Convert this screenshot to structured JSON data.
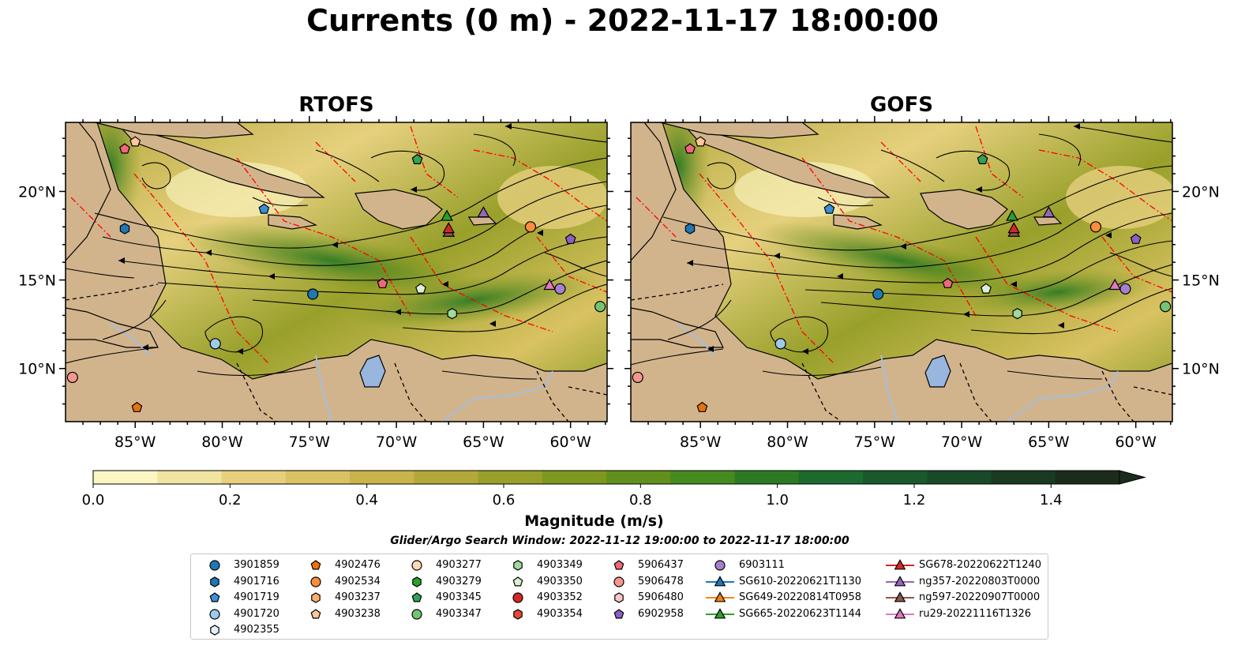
{
  "title": "Currents (0 m) - 2022-11-17 18:00:00",
  "panels": [
    {
      "title": "RTOFS"
    },
    {
      "title": "GOFS"
    }
  ],
  "axes": {
    "lat_labels": [
      "20°N",
      "15°N",
      "10°N"
    ],
    "lon_labels": [
      "85°W",
      "80°W",
      "75°W",
      "70°W",
      "65°W",
      "60°W"
    ]
  },
  "colorbar": {
    "label": "Magnitude (m/s)",
    "range": [
      0.0,
      1.5
    ],
    "extend": "max",
    "ticks": [
      "0.0",
      "0.2",
      "0.4",
      "0.6",
      "0.8",
      "1.0",
      "1.2",
      "1.4"
    ],
    "colors": [
      "#fbf6c4",
      "#f1e3a0",
      "#e6d07e",
      "#d9c262",
      "#c9b44a",
      "#b3a83a",
      "#98a02a",
      "#7e981f",
      "#62901c",
      "#478b20",
      "#2e7a24",
      "#1d6a2e",
      "#195a2c",
      "#184a27",
      "#1a3a21",
      "#1b2d1a"
    ]
  },
  "search_window": "Glider/Argo Search Window: 2022-11-12 19:00:00 to 2022-11-17 18:00:00",
  "map_colors": {
    "land": "#d2b48c",
    "lakes": "#98b6de",
    "rivers": "#a5bedc",
    "eez": "#ff0000"
  },
  "legend": [
    {
      "label": "3901859",
      "marker": "circle",
      "color": "#1f77b4"
    },
    {
      "label": "4901716",
      "marker": "hexagon",
      "color": "#1f77b4"
    },
    {
      "label": "4901719",
      "marker": "pentagon",
      "color": "#3b8fd8"
    },
    {
      "label": "4901720",
      "marker": "circle",
      "color": "#9ecae9"
    },
    {
      "label": "4902355",
      "marker": "hexagon",
      "color": "#dff0fb"
    },
    {
      "label": "4902476",
      "marker": "pentagon",
      "color": "#e8720d"
    },
    {
      "label": "4902534",
      "marker": "circle",
      "color": "#fd8d3c"
    },
    {
      "label": "4903237",
      "marker": "hexagon",
      "color": "#fdae6b"
    },
    {
      "label": "4903238",
      "marker": "pentagon",
      "color": "#fdc898"
    },
    {
      "label": "4903277",
      "marker": "circle",
      "color": "#fdd9b5"
    },
    {
      "label": "4903279",
      "marker": "hexagon",
      "color": "#2ca02c"
    },
    {
      "label": "4903345",
      "marker": "pentagon",
      "color": "#31a354"
    },
    {
      "label": "4903347",
      "marker": "circle",
      "color": "#74c476"
    },
    {
      "label": "4903349",
      "marker": "hexagon",
      "color": "#a1d99b"
    },
    {
      "label": "4903350",
      "marker": "pentagon",
      "color": "#d9f0d3"
    },
    {
      "label": "4903352",
      "marker": "circle",
      "color": "#d62728"
    },
    {
      "label": "4903354",
      "marker": "hexagon",
      "color": "#e34a33"
    },
    {
      "label": "5906437",
      "marker": "pentagon",
      "color": "#f0677a"
    },
    {
      "label": "5906478",
      "marker": "circle",
      "color": "#f4978e"
    },
    {
      "label": "5906480",
      "marker": "hexagon",
      "color": "#fbc4c4"
    },
    {
      "label": "6902958",
      "marker": "pentagon",
      "color": "#8c5fc4"
    },
    {
      "label": "6903111",
      "marker": "circle",
      "color": "#a67fd0"
    },
    {
      "label": "SG610-20220621T1130",
      "marker": "triangle-line",
      "color": "#1f77b4"
    },
    {
      "label": "SG649-20220814T0958",
      "marker": "triangle-line",
      "color": "#ff7f0e"
    },
    {
      "label": "SG665-20220623T1144",
      "marker": "triangle-line",
      "color": "#2ca02c"
    },
    {
      "label": "SG678-20220622T1240",
      "marker": "triangle-line",
      "color": "#d62728"
    },
    {
      "label": "ng357-20220803T0000",
      "marker": "triangle-line",
      "color": "#9467bd"
    },
    {
      "label": "ng597-20220907T0000",
      "marker": "triangle-line",
      "color": "#8c564b"
    },
    {
      "label": "ru29-20221116T1326",
      "marker": "triangle-line",
      "color": "#e377c2"
    }
  ],
  "markers_on_map": [
    {
      "id": "5906437",
      "lon": -85.6,
      "lat": 22.4
    },
    {
      "id": "4903238",
      "lon": -85.0,
      "lat": 22.8
    },
    {
      "id": "4901716",
      "lon": -85.6,
      "lat": 17.9
    },
    {
      "id": "4901719",
      "lon": -77.6,
      "lat": 19.0
    },
    {
      "id": "4903345",
      "lon": -68.8,
      "lat": 21.8
    },
    {
      "id": "SG665-20220623T1144",
      "lon": -67.1,
      "lat": 18.6
    },
    {
      "id": "ng597-20220907T0000",
      "lon": -67.0,
      "lat": 17.7
    },
    {
      "id": "SG678-20220622T1240",
      "lon": -67.0,
      "lat": 17.9
    },
    {
      "id": "ng357-20220803T0000",
      "lon": -65.0,
      "lat": 18.8
    },
    {
      "id": "4902534",
      "lon": -62.3,
      "lat": 18.0
    },
    {
      "id": "6902958",
      "lon": -60.0,
      "lat": 17.3
    },
    {
      "id": "3901859",
      "lon": -74.8,
      "lat": 14.2
    },
    {
      "id": "5906437",
      "lon": -70.8,
      "lat": 14.8
    },
    {
      "id": "4903350",
      "lon": -68.6,
      "lat": 14.5
    },
    {
      "id": "ru29-20221116T1326",
      "lon": -61.2,
      "lat": 14.7
    },
    {
      "id": "6903111",
      "lon": -60.6,
      "lat": 14.5
    },
    {
      "id": "4903347",
      "lon": -58.3,
      "lat": 13.5
    },
    {
      "id": "4903349",
      "lon": -66.8,
      "lat": 13.1
    },
    {
      "id": "4901720",
      "lon": -80.4,
      "lat": 11.4
    },
    {
      "id": "5906478",
      "lon": -88.6,
      "lat": 9.5
    },
    {
      "id": "4902476",
      "lon": -84.9,
      "lat": 7.8
    }
  ]
}
